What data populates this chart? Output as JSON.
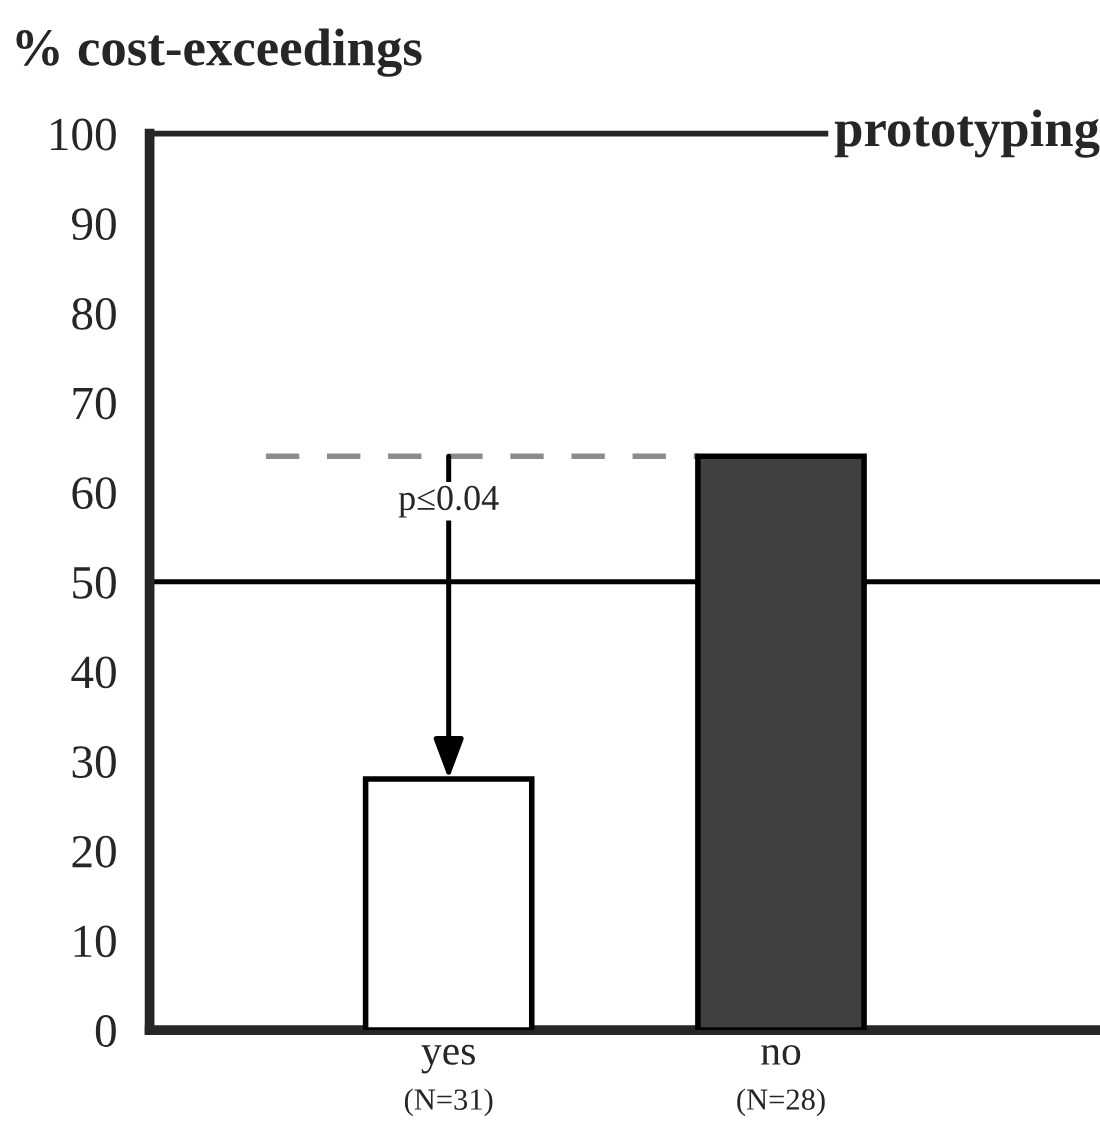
{
  "chart_data": {
    "type": "bar",
    "title": "prototyping",
    "ylabel": "% cost-exceedings",
    "categories": [
      "yes",
      "no"
    ],
    "values": [
      28,
      64
    ],
    "colors": [
      "#ffffff",
      "#404040"
    ],
    "ylim": [
      0,
      100
    ],
    "yticks": [
      0,
      10,
      20,
      30,
      40,
      50,
      60,
      70,
      80,
      90,
      100
    ],
    "ref_lines": [
      {
        "axis": "y",
        "value": 50,
        "color": "#000000",
        "line_style": "solid"
      },
      {
        "axis": "y",
        "value": 64,
        "color": "#8c8c8c",
        "line_style": "dashed"
      }
    ],
    "annotations": [
      {
        "text": "p≤0.04",
        "x": "yes",
        "y": 28
      },
      "(N=31)",
      "(N=28)"
    ],
    "grid": false,
    "legend": false
  }
}
